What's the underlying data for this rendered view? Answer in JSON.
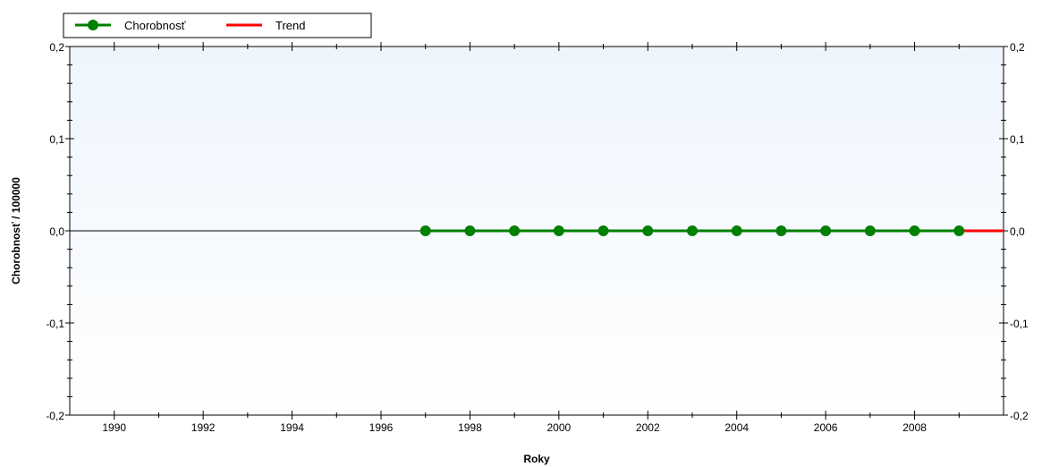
{
  "chart_data": {
    "type": "line",
    "xlabel": "Roky",
    "ylabel": "Chorobnosť / 100000",
    "xlim": [
      1989,
      2010
    ],
    "ylim": [
      -0.2,
      0.2
    ],
    "x_ticks": [
      1990,
      1992,
      1994,
      1996,
      1998,
      2000,
      2002,
      2004,
      2006,
      2008
    ],
    "y_ticks": [
      {
        "value": 0.2,
        "label": "0,2"
      },
      {
        "value": 0.1,
        "label": "0,1"
      },
      {
        "value": 0.0,
        "label": "0,0"
      },
      {
        "value": -0.1,
        "label": "-0,1"
      },
      {
        "value": -0.2,
        "label": "-0,2"
      }
    ],
    "grid": false,
    "legend_position": "top-left",
    "background": {
      "top": "#eef5fd",
      "bottom": "#ffffff"
    },
    "series": [
      {
        "name": "Chorobnosť",
        "color": "#008000",
        "marker": "circle",
        "x": [
          1997,
          1998,
          1999,
          2000,
          2001,
          2002,
          2003,
          2004,
          2005,
          2006,
          2007,
          2008,
          2009
        ],
        "values": [
          0,
          0,
          0,
          0,
          0,
          0,
          0,
          0,
          0,
          0,
          0,
          0,
          0
        ]
      },
      {
        "name": "Trend",
        "color": "#ff0000",
        "marker": "none",
        "x": [
          2009,
          2010
        ],
        "values": [
          0,
          0
        ]
      }
    ]
  }
}
